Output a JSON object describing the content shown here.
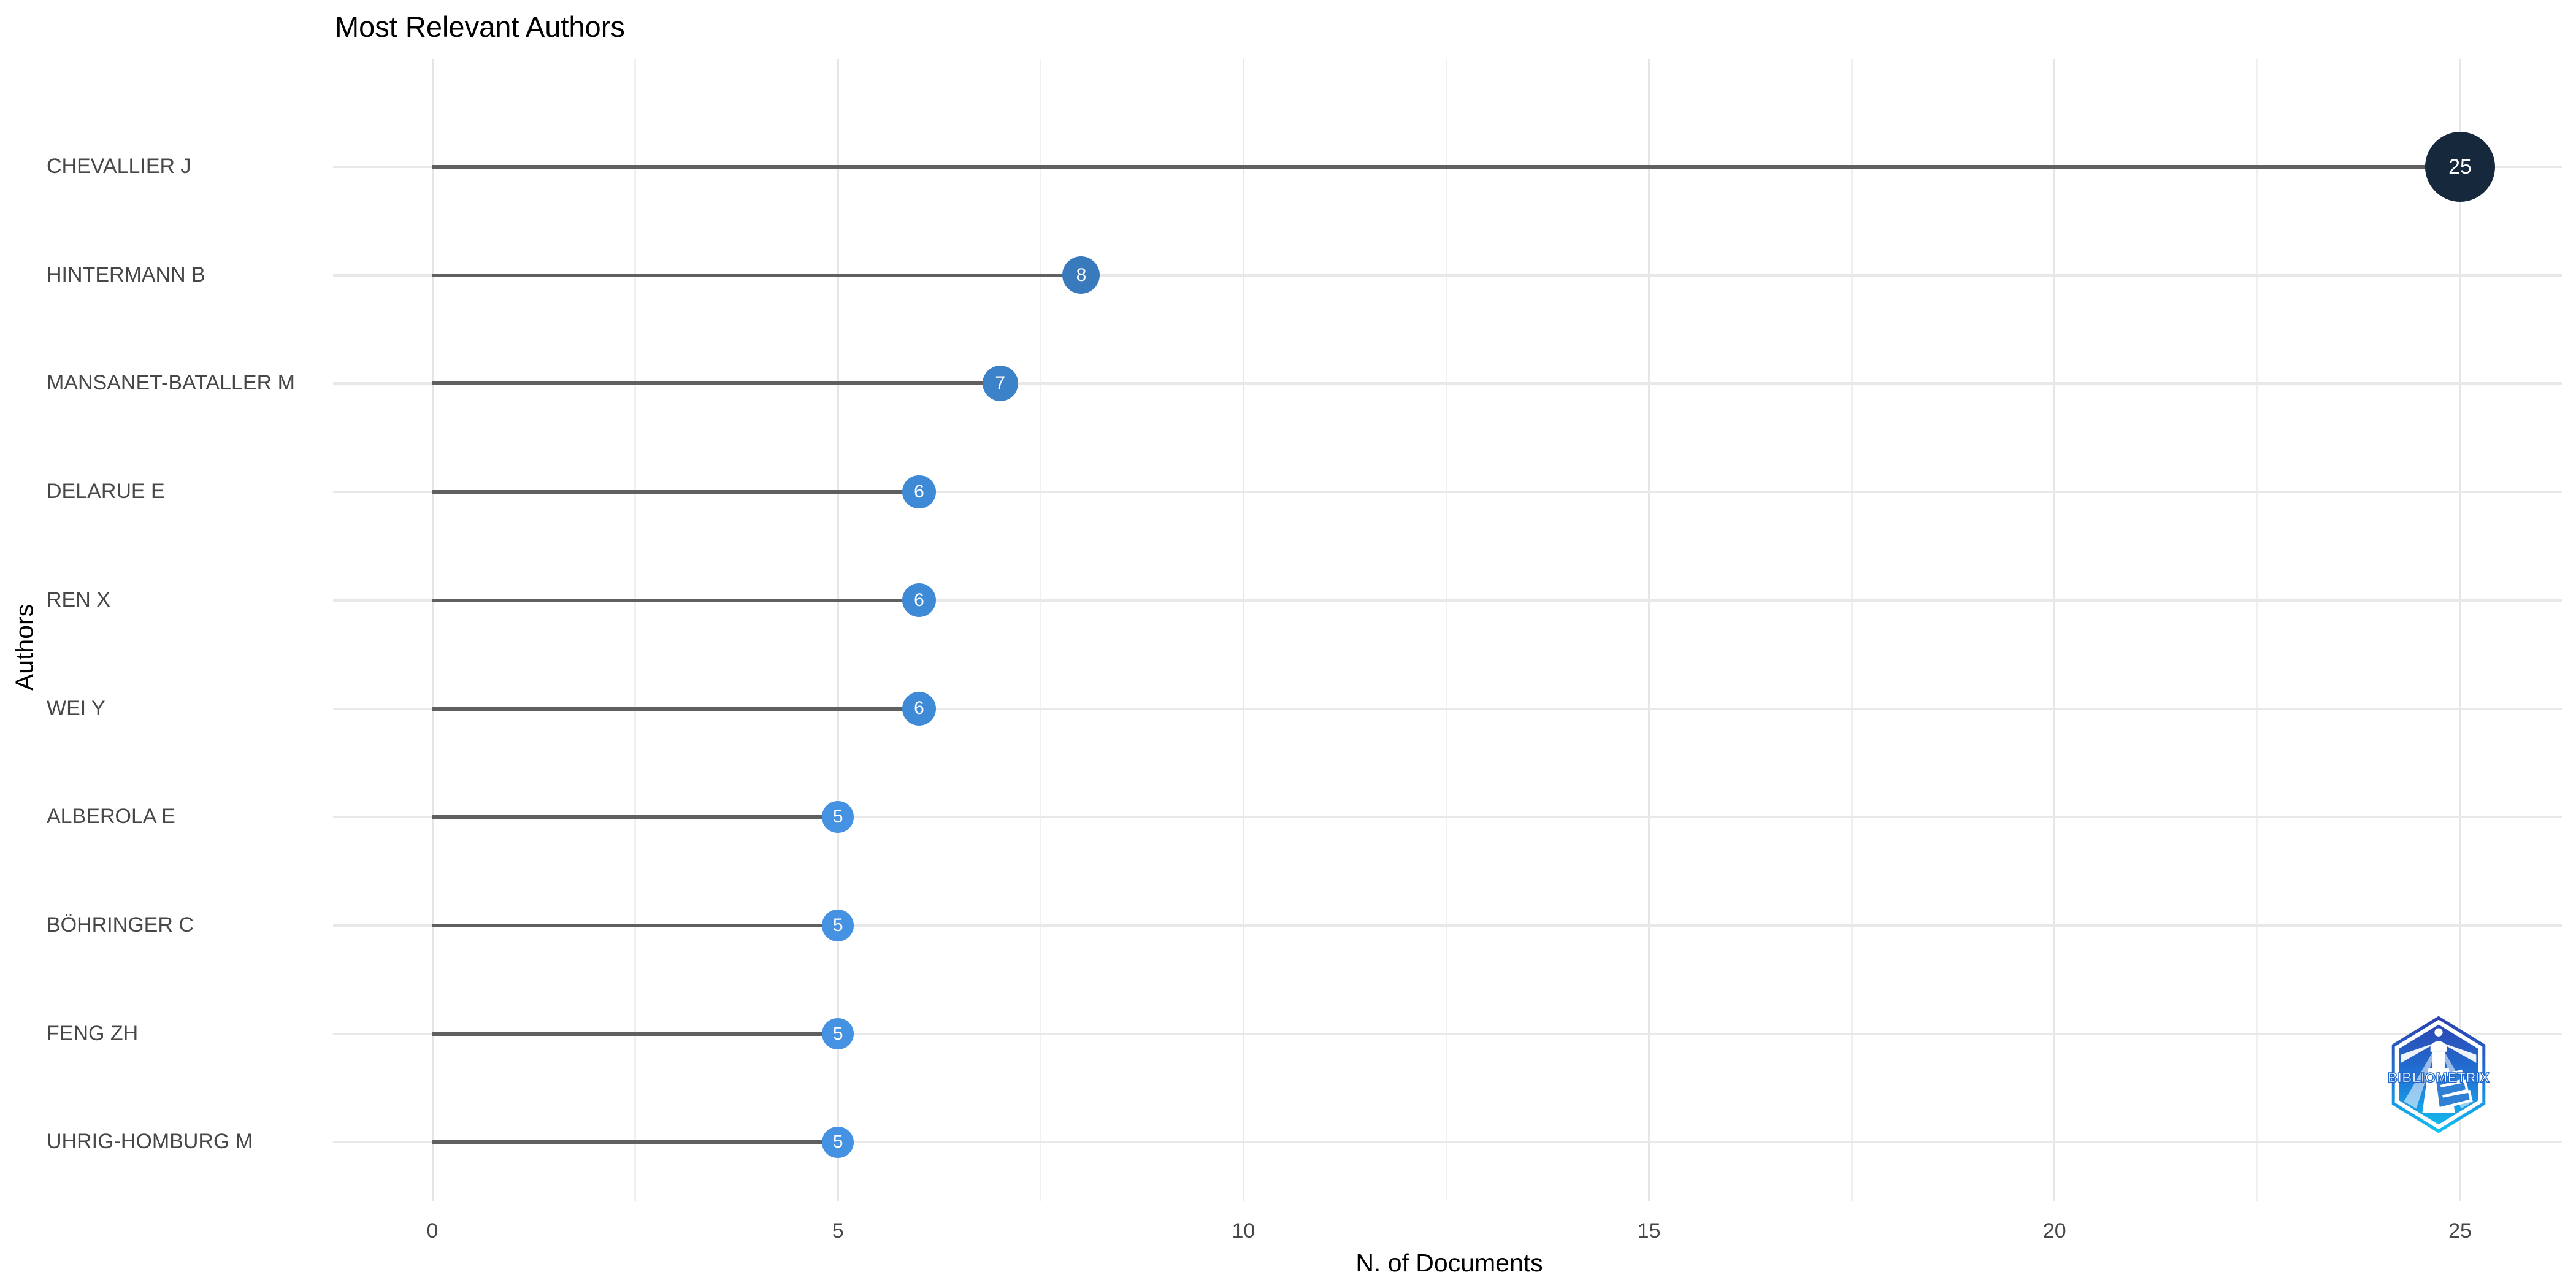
{
  "title": "Most Relevant Authors",
  "x_axis": {
    "label": "N. of Documents",
    "ticks": [
      "0",
      "5",
      "10",
      "15",
      "20",
      "25"
    ]
  },
  "y_axis": {
    "label": "Authors"
  },
  "chart_data": {
    "type": "bar",
    "subtype": "horizontal-lollipop",
    "title": "Most Relevant Authors",
    "xlabel": "N. of Documents",
    "ylabel": "Authors",
    "categories": [
      "CHEVALLIER J",
      "HINTERMANN B",
      "MANSANET-BATALLER M",
      "DELARUE E",
      "REN X",
      "WEI Y",
      "ALBEROLA E",
      "BÖHRINGER C",
      "FENG ZH",
      "UHRIG-HOMBURG M"
    ],
    "values": [
      25,
      8,
      7,
      6,
      6,
      6,
      5,
      5,
      5,
      5
    ],
    "x_ticks": [
      0,
      5,
      10,
      15,
      20,
      25
    ],
    "x_minor_ticks": [
      2.5,
      7.5,
      12.5,
      17.5,
      22.5
    ],
    "xlim": [
      -1.2,
      26.3
    ],
    "grid": true,
    "legend": false
  },
  "colors": {
    "dot_by_value": {
      "5": "#4592e2",
      "6": "#3f8ad6",
      "7": "#3c82c9",
      "8": "#397abc",
      "25": "#16283c"
    },
    "stem": "#606060",
    "grid_major": "#e6e6e6",
    "grid_minor": "#f0f0f0",
    "dot_label": "#ffffff"
  },
  "logo": {
    "text": "BIBLIOMETRIX"
  }
}
